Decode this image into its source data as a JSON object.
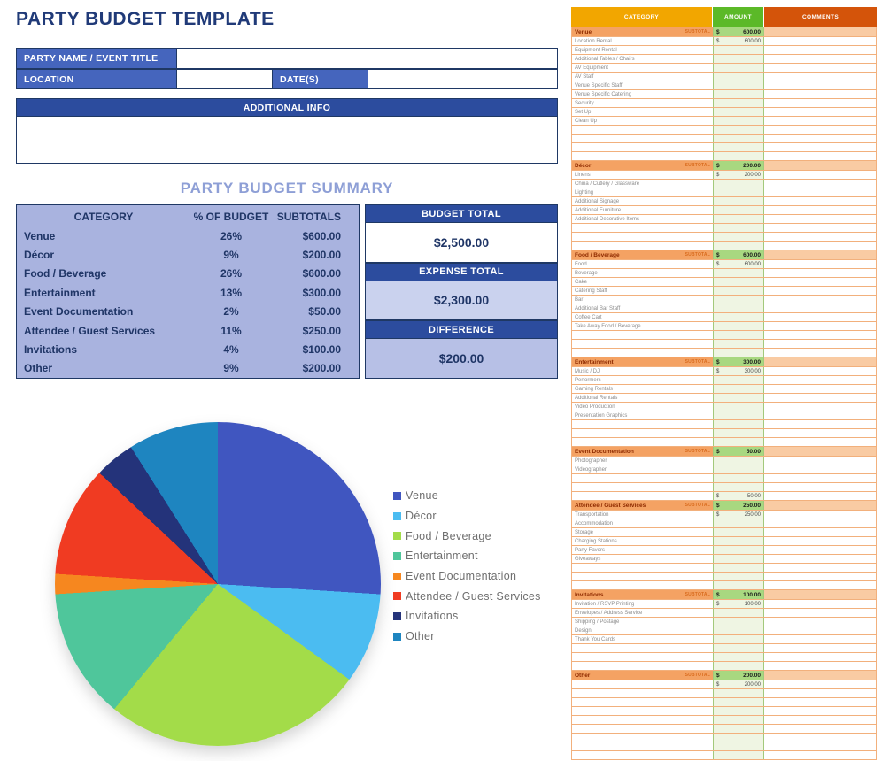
{
  "title": "PARTY BUDGET TEMPLATE",
  "colors": {
    "navy_border": "#1F3864",
    "label_blue": "#4565BD",
    "dark_blue": "#2C4C9E",
    "summary_bg": "#A9B3DF",
    "summary_title": "#8E9FD6",
    "sheet_category_header": "#F2A600",
    "sheet_amount_header": "#5BB928",
    "sheet_comments_header": "#D4540A",
    "section_row_orange": "#F4A263",
    "section_amount_green": "#A8D880"
  },
  "form": {
    "party_name_label": "PARTY NAME / EVENT TITLE",
    "party_name_value": "",
    "location_label": "LOCATION",
    "location_value": "",
    "dates_label": "DATE(S)",
    "dates_value": "",
    "additional_info_label": "ADDITIONAL INFO",
    "additional_info_value": ""
  },
  "summary": {
    "title": "PARTY BUDGET SUMMARY",
    "columns": [
      "CATEGORY",
      "% OF BUDGET",
      "SUBTOTALS"
    ],
    "rows": [
      {
        "category": "Venue",
        "percent": "26%",
        "subtotal": "$600.00"
      },
      {
        "category": "Décor",
        "percent": "9%",
        "subtotal": "$200.00"
      },
      {
        "category": "Food / Beverage",
        "percent": "26%",
        "subtotal": "$600.00"
      },
      {
        "category": "Entertainment",
        "percent": "13%",
        "subtotal": "$300.00"
      },
      {
        "category": "Event Documentation",
        "percent": "2%",
        "subtotal": "$50.00"
      },
      {
        "category": "Attendee / Guest Services",
        "percent": "11%",
        "subtotal": "$250.00"
      },
      {
        "category": "Invitations",
        "percent": "4%",
        "subtotal": "$100.00"
      },
      {
        "category": "Other",
        "percent": "9%",
        "subtotal": "$200.00"
      }
    ],
    "totals": [
      {
        "label": "BUDGET TOTAL",
        "value": "$2,500.00",
        "style": "white"
      },
      {
        "label": "EXPENSE TOTAL",
        "value": "$2,300.00",
        "style": "tint"
      },
      {
        "label": "DIFFERENCE",
        "value": "$200.00",
        "style": "tint2"
      }
    ]
  },
  "chart_data": {
    "type": "pie",
    "title": "",
    "categories": [
      "Venue",
      "Décor",
      "Food / Beverage",
      "Entertainment",
      "Event Documentation",
      "Attendee / Guest Services",
      "Invitations",
      "Other"
    ],
    "values": [
      26,
      9,
      26,
      13,
      2,
      11,
      4,
      9
    ],
    "colors": [
      "#4056C0",
      "#4BBCF1",
      "#A3DC49",
      "#4FC69B",
      "#F6871F",
      "#F03B22",
      "#24337A",
      "#1E85C0"
    ],
    "start_angle_deg": 0,
    "direction": "clockwise",
    "legend_position": "right"
  },
  "sheet": {
    "columns": [
      "CATEGORY",
      "AMOUNT",
      "COMMENTS"
    ],
    "subtotal_label": "SUBTOTAL",
    "currency": "$",
    "sections": [
      {
        "name": "Venue",
        "subtotal": "600.00",
        "items": [
          {
            "label": "Location Rental",
            "amount": "600.00"
          },
          {
            "label": "Equipment Rental",
            "amount": ""
          },
          {
            "label": "Additional Tables / Chairs",
            "amount": ""
          },
          {
            "label": "AV Equipment",
            "amount": ""
          },
          {
            "label": "AV Staff",
            "amount": ""
          },
          {
            "label": "Venue Specific Staff",
            "amount": ""
          },
          {
            "label": "Venue Specific Catering",
            "amount": ""
          },
          {
            "label": "Security",
            "amount": ""
          },
          {
            "label": "Set Up",
            "amount": ""
          },
          {
            "label": "Clean Up",
            "amount": ""
          },
          {
            "label": "",
            "amount": ""
          },
          {
            "label": "",
            "amount": ""
          },
          {
            "label": "",
            "amount": ""
          },
          {
            "label": "",
            "amount": ""
          }
        ]
      },
      {
        "name": "Décor",
        "subtotal": "200.00",
        "items": [
          {
            "label": "Linens",
            "amount": "200.00"
          },
          {
            "label": "China / Cutlery / Glassware",
            "amount": ""
          },
          {
            "label": "Lighting",
            "amount": ""
          },
          {
            "label": "Additional Signage",
            "amount": ""
          },
          {
            "label": "Additional Furniture",
            "amount": ""
          },
          {
            "label": "Additional Decorative Items",
            "amount": ""
          },
          {
            "label": "",
            "amount": ""
          },
          {
            "label": "",
            "amount": ""
          },
          {
            "label": "",
            "amount": ""
          }
        ]
      },
      {
        "name": "Food / Beverage",
        "subtotal": "600.00",
        "items": [
          {
            "label": "Food",
            "amount": "600.00"
          },
          {
            "label": "Beverage",
            "amount": ""
          },
          {
            "label": "Cake",
            "amount": ""
          },
          {
            "label": "Catering Staff",
            "amount": ""
          },
          {
            "label": "Bar",
            "amount": ""
          },
          {
            "label": "Additional Bar Staff",
            "amount": ""
          },
          {
            "label": "Coffee Cart",
            "amount": ""
          },
          {
            "label": "Take Away Food / Beverage",
            "amount": ""
          },
          {
            "label": "",
            "amount": ""
          },
          {
            "label": "",
            "amount": ""
          },
          {
            "label": "",
            "amount": ""
          }
        ]
      },
      {
        "name": "Entertainment",
        "subtotal": "300.00",
        "items": [
          {
            "label": "Music / DJ",
            "amount": "300.00"
          },
          {
            "label": "Performers",
            "amount": ""
          },
          {
            "label": "Gaming Rentals",
            "amount": ""
          },
          {
            "label": "Additional Rentals",
            "amount": ""
          },
          {
            "label": "Video Production",
            "amount": ""
          },
          {
            "label": "Presentation Graphics",
            "amount": ""
          },
          {
            "label": "",
            "amount": ""
          },
          {
            "label": "",
            "amount": ""
          },
          {
            "label": "",
            "amount": ""
          }
        ]
      },
      {
        "name": "Event Documentation",
        "subtotal": "50.00",
        "items": [
          {
            "label": "Photographer",
            "amount": ""
          },
          {
            "label": "Videographer",
            "amount": ""
          },
          {
            "label": "",
            "amount": ""
          },
          {
            "label": "",
            "amount": ""
          },
          {
            "label": "",
            "amount": "50.00"
          }
        ]
      },
      {
        "name": "Attendee / Guest Services",
        "subtotal": "250.00",
        "items": [
          {
            "label": "Transportation",
            "amount": "250.00"
          },
          {
            "label": "Accommodation",
            "amount": ""
          },
          {
            "label": "Storage",
            "amount": ""
          },
          {
            "label": "Charging Stations",
            "amount": ""
          },
          {
            "label": "Party Favors",
            "amount": ""
          },
          {
            "label": "Giveaways",
            "amount": ""
          },
          {
            "label": "",
            "amount": ""
          },
          {
            "label": "",
            "amount": ""
          },
          {
            "label": "",
            "amount": ""
          }
        ]
      },
      {
        "name": "Invitations",
        "subtotal": "100.00",
        "items": [
          {
            "label": "Invitation / RSVP Printing",
            "amount": "100.00"
          },
          {
            "label": "Envelopes / Address Service",
            "amount": ""
          },
          {
            "label": "Shipping / Postage",
            "amount": ""
          },
          {
            "label": "Design",
            "amount": ""
          },
          {
            "label": "Thank You Cards",
            "amount": ""
          },
          {
            "label": "",
            "amount": ""
          },
          {
            "label": "",
            "amount": ""
          },
          {
            "label": "",
            "amount": ""
          }
        ]
      },
      {
        "name": "Other",
        "subtotal": "200.00",
        "items": [
          {
            "label": "",
            "amount": "200.00"
          },
          {
            "label": "",
            "amount": ""
          },
          {
            "label": "",
            "amount": ""
          },
          {
            "label": "",
            "amount": ""
          },
          {
            "label": "",
            "amount": ""
          },
          {
            "label": "",
            "amount": ""
          },
          {
            "label": "",
            "amount": ""
          },
          {
            "label": "",
            "amount": ""
          },
          {
            "label": "",
            "amount": ""
          }
        ]
      }
    ]
  }
}
